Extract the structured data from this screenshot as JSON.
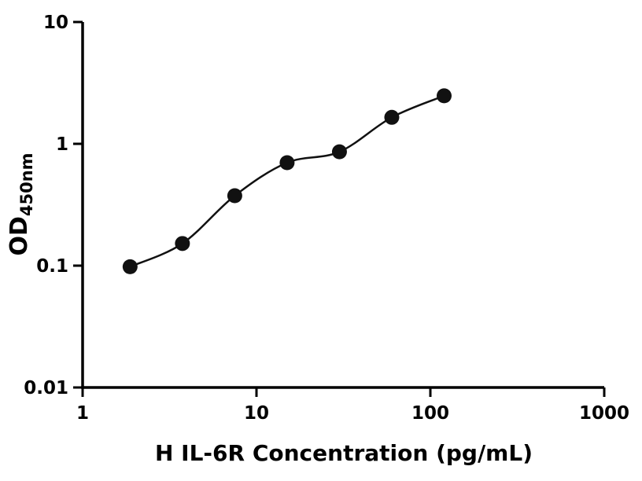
{
  "chart_data": {
    "type": "scatter",
    "x": [
      1.875,
      3.75,
      7.5,
      15,
      30,
      60,
      120
    ],
    "y": [
      0.098,
      0.152,
      0.375,
      0.7,
      0.86,
      1.65,
      2.48
    ],
    "xlabel": "H IL-6R Concentration (pg/mL)",
    "ylabel_main": "OD",
    "ylabel_sub": "450nm",
    "x_scale": "log",
    "y_scale": "log",
    "xlim": [
      1,
      1000
    ],
    "ylim": [
      0.01,
      10
    ],
    "x_ticks": [
      1,
      10,
      100,
      1000
    ],
    "x_tick_labels": [
      "1",
      "10",
      "100",
      "1000"
    ],
    "y_ticks": [
      0.01,
      0.1,
      1,
      10
    ],
    "y_tick_labels": [
      "0.01",
      "0.1",
      "1",
      "10"
    ],
    "grid": "off",
    "legend": "none",
    "marker_color": "#111111",
    "line_color": "#111111",
    "axis_color": "#000000",
    "background": "#ffffff",
    "fit_note": "smooth standard-curve line through data points"
  }
}
